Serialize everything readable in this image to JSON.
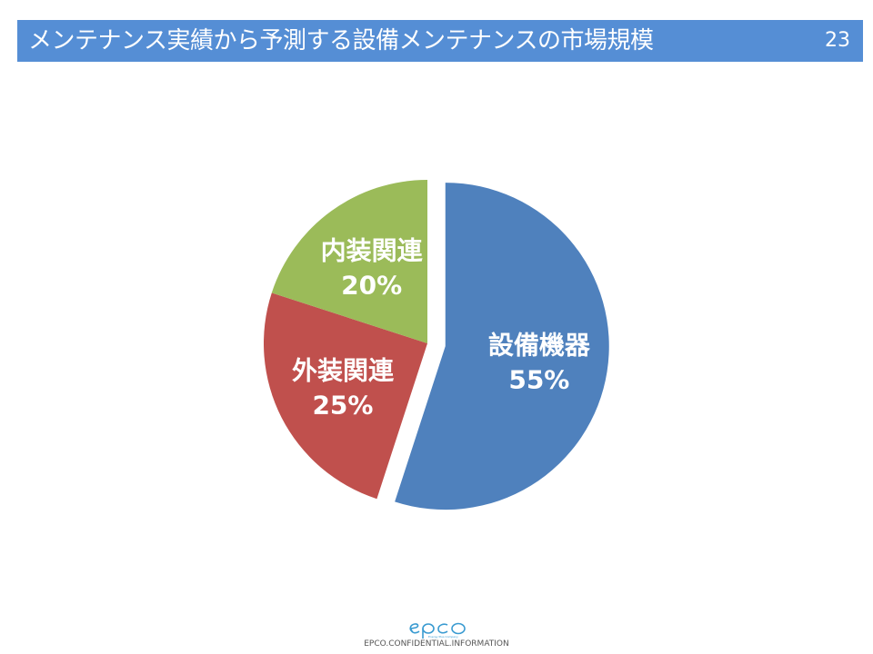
{
  "slide": {
    "title": "メンテナンス実績から予測する設備メンテナンスの市場規模",
    "page_number": "23"
  },
  "chart_data": {
    "type": "pie",
    "title": "",
    "slices": [
      {
        "label": "設備機器",
        "value": 55,
        "display": "55%",
        "color": "#4f81bd"
      },
      {
        "label": "外装関連",
        "value": 25,
        "display": "25%",
        "color": "#c0504d"
      },
      {
        "label": "内装関連",
        "value": 20,
        "display": "20%",
        "color": "#9bbb59"
      }
    ],
    "start_angle": "12 o'clock",
    "direction": "clockwise",
    "exploded": [
      "設備機器"
    ],
    "legend": "none",
    "label_color": "#ffffff"
  },
  "footer": {
    "logo_text": "epco",
    "logo_tagline": "Energy Plus Company",
    "confidential": "EPCO.CONFIDENTIAL.INFORMATION"
  }
}
